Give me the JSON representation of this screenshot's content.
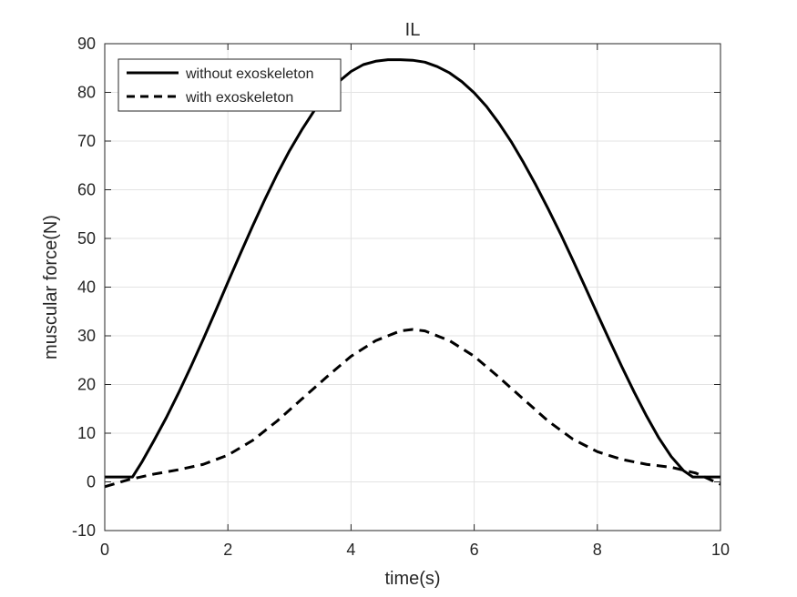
{
  "chart_data": {
    "type": "line",
    "title": "IL",
    "xlabel": "time(s)",
    "ylabel": "muscular force(N)",
    "xlim": [
      0,
      10
    ],
    "ylim": [
      -10,
      90
    ],
    "xticks": [
      0,
      2,
      4,
      6,
      8,
      10
    ],
    "yticks": [
      -10,
      0,
      10,
      20,
      30,
      40,
      50,
      60,
      70,
      80,
      90
    ],
    "grid": true,
    "legend_position": "top-left",
    "series": [
      {
        "name": "without exoskeleton",
        "style": "solid",
        "color": "#000000",
        "x": [
          0,
          0.45,
          0.6,
          0.8,
          1.0,
          1.2,
          1.4,
          1.6,
          1.8,
          2.0,
          2.2,
          2.4,
          2.6,
          2.8,
          3.0,
          3.2,
          3.4,
          3.6,
          3.8,
          4.0,
          4.2,
          4.4,
          4.6,
          4.8,
          5.0,
          5.2,
          5.4,
          5.6,
          5.8,
          6.0,
          6.2,
          6.4,
          6.6,
          6.8,
          7.0,
          7.2,
          7.4,
          7.6,
          7.8,
          8.0,
          8.2,
          8.4,
          8.6,
          8.8,
          9.0,
          9.2,
          9.4,
          9.55,
          10.0
        ],
        "values": [
          1.0,
          1.0,
          4.0,
          8.5,
          13.2,
          18.3,
          23.7,
          29.3,
          35.1,
          41.0,
          46.8,
          52.5,
          58.0,
          63.2,
          68.0,
          72.3,
          76.2,
          79.5,
          82.2,
          84.3,
          85.7,
          86.4,
          86.7,
          86.7,
          86.6,
          86.2,
          85.3,
          84.0,
          82.2,
          79.9,
          77.1,
          73.7,
          69.9,
          65.6,
          61.0,
          56.1,
          51.0,
          45.6,
          40.1,
          34.5,
          29.0,
          23.6,
          18.4,
          13.5,
          9.0,
          5.2,
          2.3,
          1.0,
          1.0
        ]
      },
      {
        "name": "with exoskeleton",
        "style": "dashed",
        "color": "#000000",
        "x": [
          0,
          0.4,
          0.8,
          1.2,
          1.6,
          2.0,
          2.4,
          2.8,
          3.2,
          3.6,
          4.0,
          4.4,
          4.8,
          5.0,
          5.2,
          5.6,
          6.0,
          6.4,
          6.8,
          7.2,
          7.6,
          8.0,
          8.4,
          8.8,
          9.2,
          9.6,
          10.0
        ],
        "values": [
          -1.0,
          0.5,
          1.6,
          2.5,
          3.6,
          5.5,
          8.5,
          12.5,
          17.0,
          21.5,
          25.8,
          29.0,
          31.0,
          31.3,
          31.0,
          29.0,
          25.8,
          21.5,
          17.0,
          12.5,
          8.8,
          6.2,
          4.6,
          3.6,
          3.0,
          1.8,
          -0.5
        ]
      }
    ]
  }
}
